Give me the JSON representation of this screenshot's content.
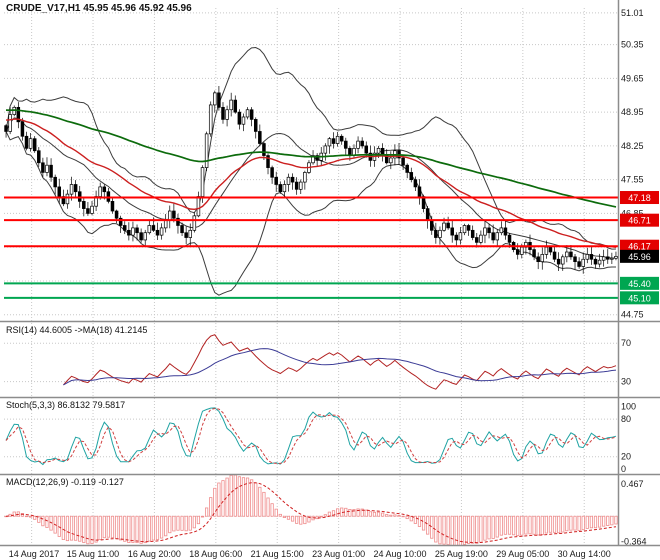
{
  "chart_data": {
    "type": "candlestick",
    "title": "CRUDE_V17,H1 45.95 45.96 45.92 45.96",
    "x_labels": [
      "14 Aug 2017",
      "15 Aug 11:00",
      "16 Aug 20:00",
      "18 Aug 06:00",
      "21 Aug 15:00",
      "23 Aug 01:00",
      "24 Aug 10:00",
      "25 Aug 19:00",
      "29 Aug 05:00",
      "30 Aug 14:00"
    ],
    "main": {
      "ylim": [
        44.64,
        51.11
      ],
      "y_ticks": [
        51.01,
        50.35,
        49.65,
        48.95,
        48.25,
        47.55,
        46.85,
        46.15,
        45.45,
        44.75
      ],
      "close": [
        48.55,
        48.9,
        49.05,
        48.75,
        48.45,
        48.2,
        48.4,
        48.15,
        47.9,
        47.7,
        47.85,
        47.6,
        47.4,
        47.2,
        47.05,
        47.25,
        47.45,
        47.3,
        47.1,
        46.95,
        46.85,
        47.0,
        47.2,
        47.4,
        47.3,
        47.1,
        46.9,
        46.75,
        46.6,
        46.5,
        46.4,
        46.55,
        46.45,
        46.3,
        46.45,
        46.6,
        46.5,
        46.4,
        46.55,
        46.7,
        46.9,
        46.75,
        46.6,
        46.45,
        46.35,
        46.5,
        46.8,
        47.2,
        47.8,
        48.5,
        49.1,
        49.35,
        49.05,
        48.8,
        49.0,
        49.2,
        48.95,
        48.7,
        48.85,
        49.0,
        48.8,
        48.55,
        48.3,
        48.05,
        47.8,
        47.6,
        47.45,
        47.3,
        47.45,
        47.6,
        47.5,
        47.35,
        47.5,
        47.7,
        47.9,
        48.05,
        47.95,
        48.1,
        48.25,
        48.4,
        48.3,
        48.45,
        48.35,
        48.2,
        48.05,
        48.2,
        48.35,
        48.25,
        48.1,
        47.95,
        48.1,
        48.2,
        48.05,
        47.9,
        48.0,
        48.15,
        48.0,
        47.85,
        47.7,
        47.55,
        47.4,
        47.2,
        46.95,
        46.7,
        46.5,
        46.35,
        46.5,
        46.65,
        46.55,
        46.4,
        46.3,
        46.45,
        46.6,
        46.5,
        46.35,
        46.25,
        46.4,
        46.55,
        46.45,
        46.3,
        46.45,
        46.55,
        46.4,
        46.25,
        46.1,
        46.0,
        46.15,
        46.25,
        46.1,
        45.95,
        45.85,
        46.0,
        46.15,
        46.05,
        45.9,
        45.8,
        45.95,
        46.05,
        45.95,
        45.85,
        45.75,
        45.9,
        46.0,
        45.9,
        45.8,
        45.88,
        45.95,
        45.9,
        45.92,
        45.96
      ],
      "bollinger": {
        "period": 20,
        "deviation": 2,
        "color": "#3c3c3c"
      },
      "ma_red": {
        "period": 35,
        "seed": 48.8,
        "color": "#cc1f1f"
      },
      "ma_green": {
        "period": 120,
        "seed": 49.0,
        "color": "#0c6b0c"
      },
      "h_lines": [
        {
          "price": 47.18,
          "color": "#ff0000",
          "width": 2
        },
        {
          "price": 46.71,
          "color": "#ff0000",
          "width": 2
        },
        {
          "price": 46.17,
          "color": "#ff0000",
          "width": 2
        },
        {
          "price": 45.4,
          "color": "#00a651",
          "width": 2
        },
        {
          "price": 45.1,
          "color": "#00a651",
          "width": 2
        }
      ],
      "price_badges": [
        {
          "label": "47.18",
          "price": 47.18,
          "color": "#e30000"
        },
        {
          "label": "46.71",
          "price": 46.71,
          "color": "#e30000"
        },
        {
          "label": "46.17",
          "price": 46.17,
          "color": "#e30000"
        },
        {
          "label": "45.96",
          "price": 45.96,
          "color": "#000000"
        },
        {
          "label": "45.40",
          "price": 45.4,
          "color": "#00a651"
        },
        {
          "label": "45.10",
          "price": 45.1,
          "color": "#00a651"
        }
      ]
    },
    "rsi": {
      "label": "RSI(14) 44.6005 ->MA(18) 41.2145",
      "period": 14,
      "ma_period": 18,
      "levels": [
        70,
        30
      ],
      "ylim": [
        15,
        90
      ],
      "colors": {
        "line": "#b22222",
        "ma": "#3c3c96"
      }
    },
    "stoch": {
      "label": "Stoch(5,3,3) 86.8132 79.5817",
      "k": 5,
      "slowing": 3,
      "d": 3,
      "levels": [
        100,
        80,
        20,
        0
      ],
      "grid_levels": [
        80,
        20
      ],
      "ylim": [
        -6,
        112
      ],
      "colors": {
        "k": "#1fa3a3",
        "d": "#d04040"
      }
    },
    "macd": {
      "label": "MACD(12,26,9) -0.119 -0.127",
      "fast": 12,
      "slow": 26,
      "signal": 9,
      "y_ticks": [
        0.467,
        -0.364
      ],
      "ylim": [
        -0.4,
        0.58
      ],
      "colors": {
        "hist": "#ef8c8c",
        "signal": "#d02020"
      }
    }
  }
}
